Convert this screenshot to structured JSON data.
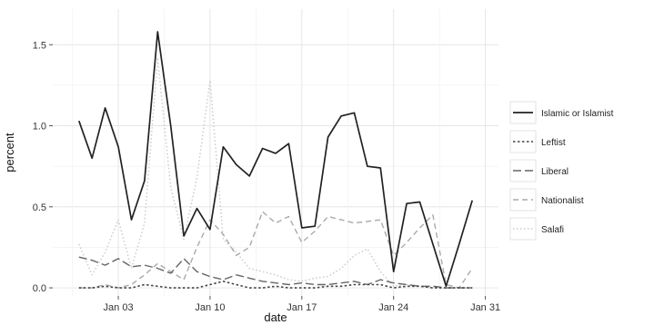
{
  "chart_data": {
    "type": "line",
    "title": "",
    "xlabel": "date",
    "ylabel": "percent",
    "x_axis": {
      "type": "date",
      "range": [
        "2015-12-29",
        "2016-02-01"
      ],
      "ticks": [
        {
          "date": "2016-01-03",
          "label": "Jan 03"
        },
        {
          "date": "2016-01-10",
          "label": "Jan 10"
        },
        {
          "date": "2016-01-17",
          "label": "Jan 17"
        },
        {
          "date": "2016-01-24",
          "label": "Jan 24"
        },
        {
          "date": "2016-01-31",
          "label": "Jan 31"
        }
      ]
    },
    "y_axis": {
      "range": [
        -0.05,
        1.72
      ],
      "ticks": [
        {
          "value": 0.0,
          "label": "0.0"
        },
        {
          "value": 0.5,
          "label": "0.5"
        },
        {
          "value": 1.0,
          "label": "1.0"
        },
        {
          "value": 1.5,
          "label": "1.5"
        }
      ]
    },
    "grid": true,
    "background": "#ffffff",
    "legend_position": "right",
    "x": [
      "2015-12-31",
      "2016-01-01",
      "2016-01-02",
      "2016-01-03",
      "2016-01-04",
      "2016-01-05",
      "2016-01-06",
      "2016-01-07",
      "2016-01-08",
      "2016-01-09",
      "2016-01-10",
      "2016-01-11",
      "2016-01-12",
      "2016-01-13",
      "2016-01-14",
      "2016-01-15",
      "2016-01-16",
      "2016-01-17",
      "2016-01-18",
      "2016-01-19",
      "2016-01-20",
      "2016-01-21",
      "2016-01-22",
      "2016-01-23",
      "2016-01-24",
      "2016-01-25",
      "2016-01-26",
      "2016-01-27",
      "2016-01-28",
      "2016-01-29",
      "2016-01-30",
      "2016-01-31"
    ],
    "series": [
      {
        "name": "Islamic or Islamist",
        "color": "#222222",
        "dash": "solid",
        "width": 1.7,
        "values": [
          1.03,
          0.8,
          1.11,
          0.87,
          0.42,
          0.66,
          1.58,
          1.0,
          0.32,
          0.49,
          0.36,
          0.87,
          0.76,
          0.69,
          0.86,
          0.83,
          0.89,
          0.37,
          0.38,
          0.93,
          1.06,
          1.08,
          0.75,
          0.74,
          0.1,
          0.52,
          0.53,
          0.27,
          0.01,
          0.27,
          0.54,
          null
        ]
      },
      {
        "name": "Leftist",
        "color": "#444444",
        "dash": "dotted-heavy",
        "width": 1.6,
        "values": [
          0.0,
          0.0,
          0.01,
          0.0,
          0.0,
          0.02,
          0.01,
          0.0,
          0.0,
          0.0,
          0.02,
          0.04,
          0.02,
          0.0,
          0.0,
          0.01,
          0.0,
          0.0,
          0.0,
          0.01,
          0.01,
          0.02,
          0.02,
          0.02,
          0.0,
          0.01,
          0.01,
          0.0,
          0.0,
          0.0,
          0.0,
          null
        ]
      },
      {
        "name": "Liberal",
        "color": "#666666",
        "dash": "longdash",
        "width": 1.4,
        "values": [
          0.19,
          0.17,
          0.14,
          0.18,
          0.13,
          0.14,
          0.12,
          0.09,
          0.18,
          0.1,
          0.07,
          0.05,
          0.08,
          0.06,
          0.04,
          0.03,
          0.02,
          0.03,
          0.02,
          0.02,
          0.03,
          0.04,
          0.02,
          0.05,
          0.03,
          0.02,
          0.01,
          0.01,
          0.0,
          0.0,
          0.0,
          null
        ]
      },
      {
        "name": "Nationalist",
        "color": "#aaaaaa",
        "dash": "dash",
        "width": 1.4,
        "values": [
          0.0,
          0.0,
          0.02,
          0.0,
          0.02,
          0.08,
          0.15,
          0.1,
          0.05,
          0.25,
          0.42,
          0.33,
          0.2,
          0.25,
          0.47,
          0.4,
          0.44,
          0.28,
          0.35,
          0.44,
          0.42,
          0.4,
          0.41,
          0.42,
          0.2,
          0.28,
          0.37,
          0.45,
          0.02,
          0.0,
          0.12,
          null
        ]
      },
      {
        "name": "Salafi",
        "color": "#cccccc",
        "dash": "dotted",
        "width": 1.5,
        "values": [
          0.27,
          0.08,
          0.22,
          0.42,
          0.12,
          0.4,
          1.42,
          0.62,
          0.3,
          0.68,
          1.28,
          0.3,
          0.22,
          0.12,
          0.1,
          0.08,
          0.05,
          0.04,
          0.06,
          0.07,
          0.12,
          0.2,
          0.24,
          0.1,
          0.01,
          0.02,
          0.01,
          0.0,
          0.0,
          0.0,
          0.0,
          null
        ]
      }
    ]
  }
}
